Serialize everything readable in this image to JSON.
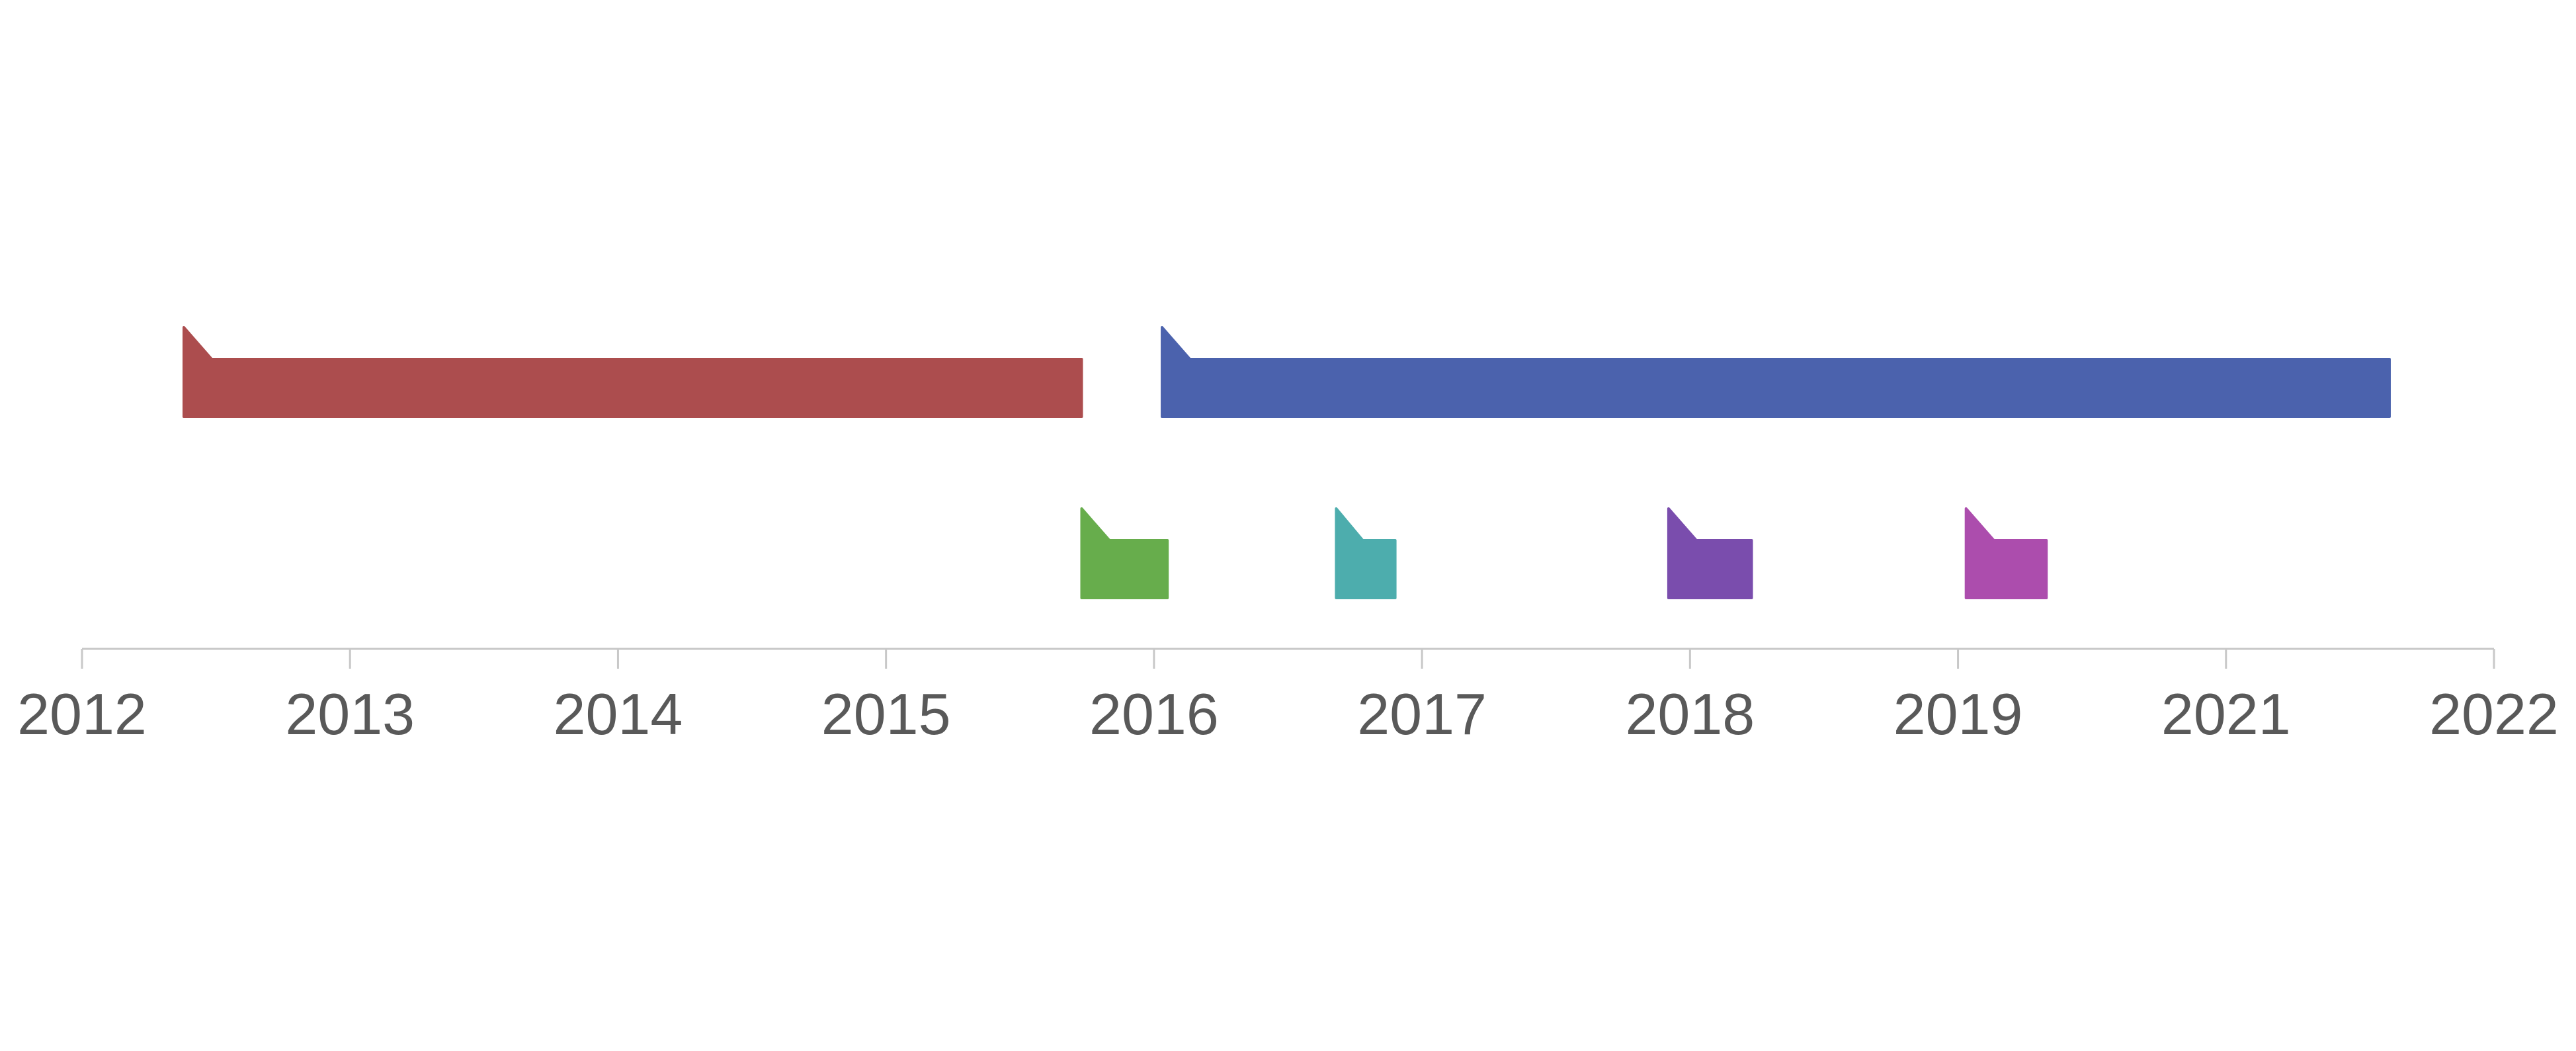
{
  "chart_data": {
    "type": "timeline",
    "axis": {
      "tick_labels": [
        "2012",
        "2013",
        "2014",
        "2015",
        "2016",
        "2017",
        "2018",
        "2019",
        "2021",
        "2022"
      ]
    },
    "bars": [
      {
        "start_tick": 0.38,
        "end_tick": 3.73,
        "row": 1,
        "color": "#ac4d4e"
      },
      {
        "start_tick": 4.03,
        "end_tick": 8.61,
        "row": 1,
        "color": "#4b62ad"
      },
      {
        "start_tick": 3.73,
        "end_tick": 4.05,
        "row": 2,
        "color": "#67ad4c"
      },
      {
        "start_tick": 4.68,
        "end_tick": 4.9,
        "row": 2,
        "color": "#4dadad"
      },
      {
        "start_tick": 5.92,
        "end_tick": 6.23,
        "row": 2,
        "color": "#7a4dad"
      },
      {
        "start_tick": 7.03,
        "end_tick": 7.33,
        "row": 2,
        "color": "#ac4dad"
      }
    ],
    "colors": {
      "axis_line": "#c8c8c8",
      "tick_label": "#595959"
    }
  }
}
